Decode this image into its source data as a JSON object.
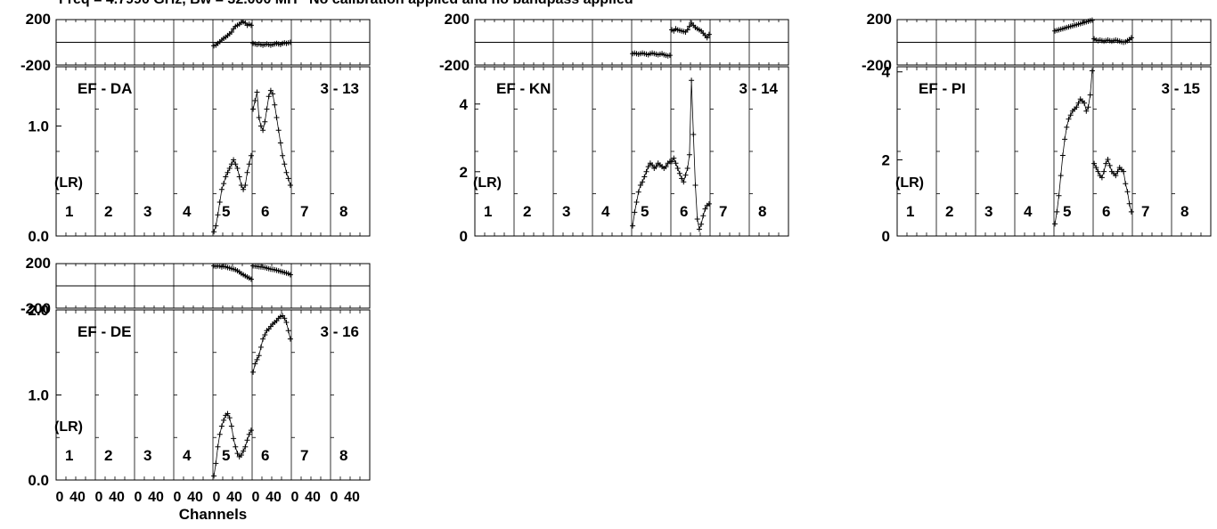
{
  "header": "Freq = 4.7990 GHz, Bw = 32.000 MH   No calibration applied and no bandpass applied",
  "chart_data": [
    {
      "type": "scatter",
      "title": "EF - DA",
      "baseline_label": "3 - 13",
      "polarization": "(LR)",
      "if_labels": [
        "1",
        "2",
        "3",
        "4",
        "5",
        "6",
        "7",
        "8"
      ],
      "channel_tick_labels": [],
      "xlabel": "",
      "phase": {
        "ylim": [
          -200,
          200
        ],
        "yticks": [
          "200",
          "-200"
        ],
        "series": [
          {
            "if": 5,
            "x": [
              1,
              3,
              5,
              7,
              9,
              11,
              13,
              15,
              17,
              19,
              21,
              23,
              25,
              27,
              29,
              31,
              33,
              35,
              37,
              39
            ],
            "y": [
              -30,
              -25,
              -10,
              5,
              20,
              35,
              45,
              60,
              75,
              90,
              120,
              140,
              150,
              160,
              175,
              180,
              170,
              150,
              160,
              150
            ]
          },
          {
            "if": 6,
            "x": [
              1,
              3,
              5,
              7,
              9,
              11,
              13,
              15,
              17,
              19,
              21,
              23,
              25,
              27,
              29,
              31,
              33,
              35,
              37,
              39
            ],
            "y": [
              -10,
              -15,
              -20,
              -15,
              -20,
              -25,
              -20,
              -15,
              -20,
              -25,
              -20,
              -15,
              -10,
              -15,
              -20,
              -10,
              -5,
              -10,
              -5,
              0
            ]
          }
        ]
      },
      "amplitude": {
        "ylim": [
          0,
          2.0
        ],
        "yticks": [
          "1.0",
          "0.0"
        ],
        "series": [
          {
            "if": 5,
            "x": [
              1,
              3,
              5,
              7,
              9,
              11,
              13,
              15,
              17,
              19,
              21,
              23,
              25,
              27,
              29,
              31,
              33,
              35,
              37,
              39
            ],
            "y": [
              0.05,
              0.12,
              0.25,
              0.4,
              0.55,
              0.62,
              0.7,
              0.75,
              0.8,
              0.85,
              0.9,
              0.85,
              0.8,
              0.7,
              0.6,
              0.55,
              0.6,
              0.75,
              0.85,
              0.95
            ]
          },
          {
            "if": 6,
            "x": [
              1,
              3,
              5,
              7,
              9,
              11,
              13,
              15,
              17,
              19,
              21,
              23,
              25,
              27,
              29,
              31,
              33,
              35,
              37,
              39
            ],
            "y": [
              1.5,
              1.6,
              1.7,
              1.4,
              1.3,
              1.25,
              1.35,
              1.5,
              1.65,
              1.72,
              1.68,
              1.55,
              1.4,
              1.25,
              1.1,
              0.95,
              0.85,
              0.75,
              0.68,
              0.6
            ]
          }
        ]
      }
    },
    {
      "type": "scatter",
      "title": "EF - KN",
      "baseline_label": "3 - 14",
      "polarization": "(LR)",
      "if_labels": [
        "1",
        "2",
        "3",
        "4",
        "5",
        "6",
        "7",
        "8"
      ],
      "channel_tick_labels": [],
      "xlabel": "",
      "phase": {
        "ylim": [
          -200,
          200
        ],
        "yticks": [
          "200",
          "-200"
        ],
        "series": [
          {
            "if": 5,
            "x": [
              1,
              3,
              5,
              7,
              9,
              11,
              13,
              15,
              17,
              19,
              21,
              23,
              25,
              27,
              29,
              31,
              33,
              35,
              37,
              39
            ],
            "y": [
              -100,
              -95,
              -100,
              -105,
              -100,
              -95,
              -100,
              -105,
              -110,
              -100,
              -95,
              -100,
              -105,
              -110,
              -105,
              -100,
              -110,
              -115,
              -120,
              -115
            ]
          },
          {
            "if": 6,
            "x": [
              1,
              3,
              5,
              7,
              9,
              11,
              13,
              15,
              17,
              19,
              21,
              23,
              25,
              27,
              29,
              31,
              33,
              35,
              37,
              39
            ],
            "y": [
              110,
              100,
              120,
              110,
              105,
              100,
              95,
              90,
              110,
              140,
              170,
              150,
              130,
              120,
              110,
              100,
              80,
              60,
              40,
              70
            ]
          }
        ]
      },
      "amplitude": {
        "ylim": [
          0,
          5
        ],
        "yticks": [
          "4",
          "2",
          "0"
        ],
        "series": [
          {
            "if": 5,
            "x": [
              1,
              3,
              5,
              7,
              9,
              11,
              13,
              15,
              17,
              19,
              21,
              23,
              25,
              27,
              29,
              31,
              33,
              35,
              37,
              39
            ],
            "y": [
              0.3,
              0.7,
              1.0,
              1.3,
              1.5,
              1.6,
              1.75,
              1.9,
              2.05,
              2.15,
              2.1,
              2.0,
              2.05,
              2.15,
              2.1,
              2.05,
              2.0,
              2.05,
              2.15,
              2.2
            ]
          },
          {
            "if": 6,
            "x": [
              1,
              3,
              5,
              7,
              9,
              11,
              13,
              15,
              17,
              19,
              21,
              23,
              25,
              27,
              29,
              31,
              33,
              35,
              37,
              39
            ],
            "y": [
              2.2,
              2.3,
              2.15,
              2.0,
              1.85,
              1.7,
              1.6,
              1.8,
              2.0,
              2.4,
              4.6,
              3.0,
              1.5,
              0.5,
              0.2,
              0.35,
              0.6,
              0.8,
              0.9,
              0.95
            ]
          }
        ]
      }
    },
    {
      "type": "scatter",
      "title": "EF - PI",
      "baseline_label": "3 - 15",
      "polarization": "(LR)",
      "if_labels": [
        "1",
        "2",
        "3",
        "4",
        "5",
        "6",
        "7",
        "8"
      ],
      "channel_tick_labels": [],
      "xlabel": "",
      "phase": {
        "ylim": [
          -200,
          200
        ],
        "yticks": [
          "200",
          "-200"
        ],
        "series": [
          {
            "if": 5,
            "x": [
              1,
              3,
              5,
              7,
              9,
              11,
              13,
              15,
              17,
              19,
              21,
              23,
              25,
              27,
              29,
              31,
              33,
              35,
              37,
              39
            ],
            "y": [
              100,
              105,
              110,
              115,
              120,
              125,
              130,
              135,
              140,
              145,
              150,
              155,
              160,
              165,
              170,
              175,
              180,
              185,
              190,
              195
            ]
          },
          {
            "if": 6,
            "x": [
              1,
              3,
              5,
              7,
              9,
              11,
              13,
              15,
              17,
              19,
              21,
              23,
              25,
              27,
              29,
              31,
              33,
              35,
              37,
              39
            ],
            "y": [
              30,
              20,
              15,
              20,
              15,
              10,
              15,
              20,
              15,
              10,
              15,
              20,
              15,
              10,
              5,
              0,
              5,
              15,
              25,
              40
            ]
          }
        ]
      },
      "amplitude": {
        "ylim": [
          0,
          4.2
        ],
        "yticks": [
          "4",
          "2",
          "0"
        ],
        "series": [
          {
            "if": 5,
            "x": [
              1,
              3,
              5,
              7,
              9,
              11,
              13,
              15,
              17,
              19,
              21,
              23,
              25,
              27,
              29,
              31,
              33,
              35,
              37,
              39
            ],
            "y": [
              0.3,
              0.6,
              1.0,
              1.5,
              2.0,
              2.4,
              2.7,
              2.9,
              3.0,
              3.1,
              3.15,
              3.2,
              3.3,
              3.4,
              3.35,
              3.3,
              3.1,
              3.2,
              3.5,
              4.1
            ]
          },
          {
            "if": 6,
            "x": [
              1,
              3,
              5,
              7,
              9,
              11,
              13,
              15,
              17,
              19,
              21,
              23,
              25,
              27,
              29,
              31,
              33,
              35,
              37,
              39
            ],
            "y": [
              1.8,
              1.7,
              1.6,
              1.5,
              1.45,
              1.6,
              1.8,
              1.9,
              1.75,
              1.6,
              1.55,
              1.5,
              1.6,
              1.7,
              1.65,
              1.6,
              1.3,
              1.1,
              0.8,
              0.6
            ]
          }
        ]
      }
    },
    {
      "type": "scatter",
      "title": "EF - DE",
      "baseline_label": "3 - 16",
      "polarization": "(LR)",
      "if_labels": [
        "1",
        "2",
        "3",
        "4",
        "5",
        "6",
        "7",
        "8"
      ],
      "channel_tick_labels": [
        "0",
        "40",
        "0",
        "40",
        "0",
        "40",
        "0",
        "40",
        "0",
        "40",
        "0",
        "40",
        "0",
        "40",
        "0",
        "40"
      ],
      "xlabel": "Channels",
      "phase": {
        "ylim": [
          -200,
          200
        ],
        "yticks": [
          "200",
          "-200"
        ],
        "series": [
          {
            "if": 5,
            "x": [
              1,
              3,
              5,
              7,
              9,
              11,
              13,
              15,
              17,
              19,
              21,
              23,
              25,
              27,
              29,
              31,
              33,
              35,
              37,
              39
            ],
            "y": [
              180,
              175,
              180,
              178,
              170,
              175,
              172,
              165,
              160,
              155,
              150,
              145,
              135,
              125,
              110,
              100,
              90,
              80,
              70,
              60
            ]
          },
          {
            "if": 6,
            "x": [
              1,
              3,
              5,
              7,
              9,
              11,
              13,
              15,
              17,
              19,
              21,
              23,
              25,
              27,
              29,
              31,
              33,
              35,
              37,
              39
            ],
            "y": [
              180,
              178,
              175,
              172,
              170,
              168,
              165,
              160,
              155,
              150,
              148,
              145,
              140,
              135,
              130,
              125,
              120,
              115,
              110,
              100
            ]
          }
        ]
      },
      "amplitude": {
        "ylim": [
          0,
          2.05
        ],
        "yticks": [
          "2.0",
          "1.0",
          "0.0"
        ],
        "series": [
          {
            "if": 5,
            "x": [
              1,
              3,
              5,
              7,
              9,
              11,
              13,
              15,
              17,
              19,
              21,
              23,
              25,
              27,
              29,
              31,
              33,
              35,
              37,
              39
            ],
            "y": [
              0.05,
              0.2,
              0.4,
              0.55,
              0.65,
              0.72,
              0.78,
              0.8,
              0.75,
              0.65,
              0.5,
              0.4,
              0.32,
              0.28,
              0.3,
              0.35,
              0.4,
              0.48,
              0.55,
              0.6
            ]
          },
          {
            "if": 6,
            "x": [
              1,
              3,
              5,
              7,
              9,
              11,
              13,
              15,
              17,
              19,
              21,
              23,
              25,
              27,
              29,
              31,
              33,
              35,
              37,
              39
            ],
            "y": [
              1.3,
              1.4,
              1.45,
              1.5,
              1.6,
              1.7,
              1.75,
              1.8,
              1.82,
              1.85,
              1.88,
              1.9,
              1.92,
              1.95,
              1.97,
              1.98,
              1.95,
              1.9,
              1.8,
              1.7
            ]
          }
        ]
      }
    }
  ]
}
